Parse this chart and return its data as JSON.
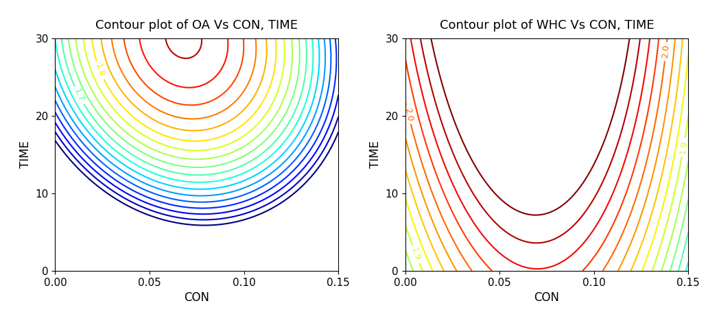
{
  "title_left": "Contour plot of OA Vs CON, TIME",
  "title_right": "Contour plot of WHC Vs CON, TIME",
  "xlabel": "CON",
  "ylabel": "TIME",
  "xlim": [
    0.0,
    0.15
  ],
  "ylim": [
    0,
    30
  ],
  "xticks": [
    0.0,
    0.05,
    0.1,
    0.15
  ],
  "yticks": [
    0,
    10,
    20,
    30
  ],
  "title_fontsize": 13,
  "label_fontsize": 12,
  "tick_fontsize": 11,
  "oa_step": 0.025,
  "oa_min": 1.5,
  "oa_max": 1.96,
  "whc_step": 0.025,
  "whc_min": 1.6,
  "whc_max": 2.12
}
